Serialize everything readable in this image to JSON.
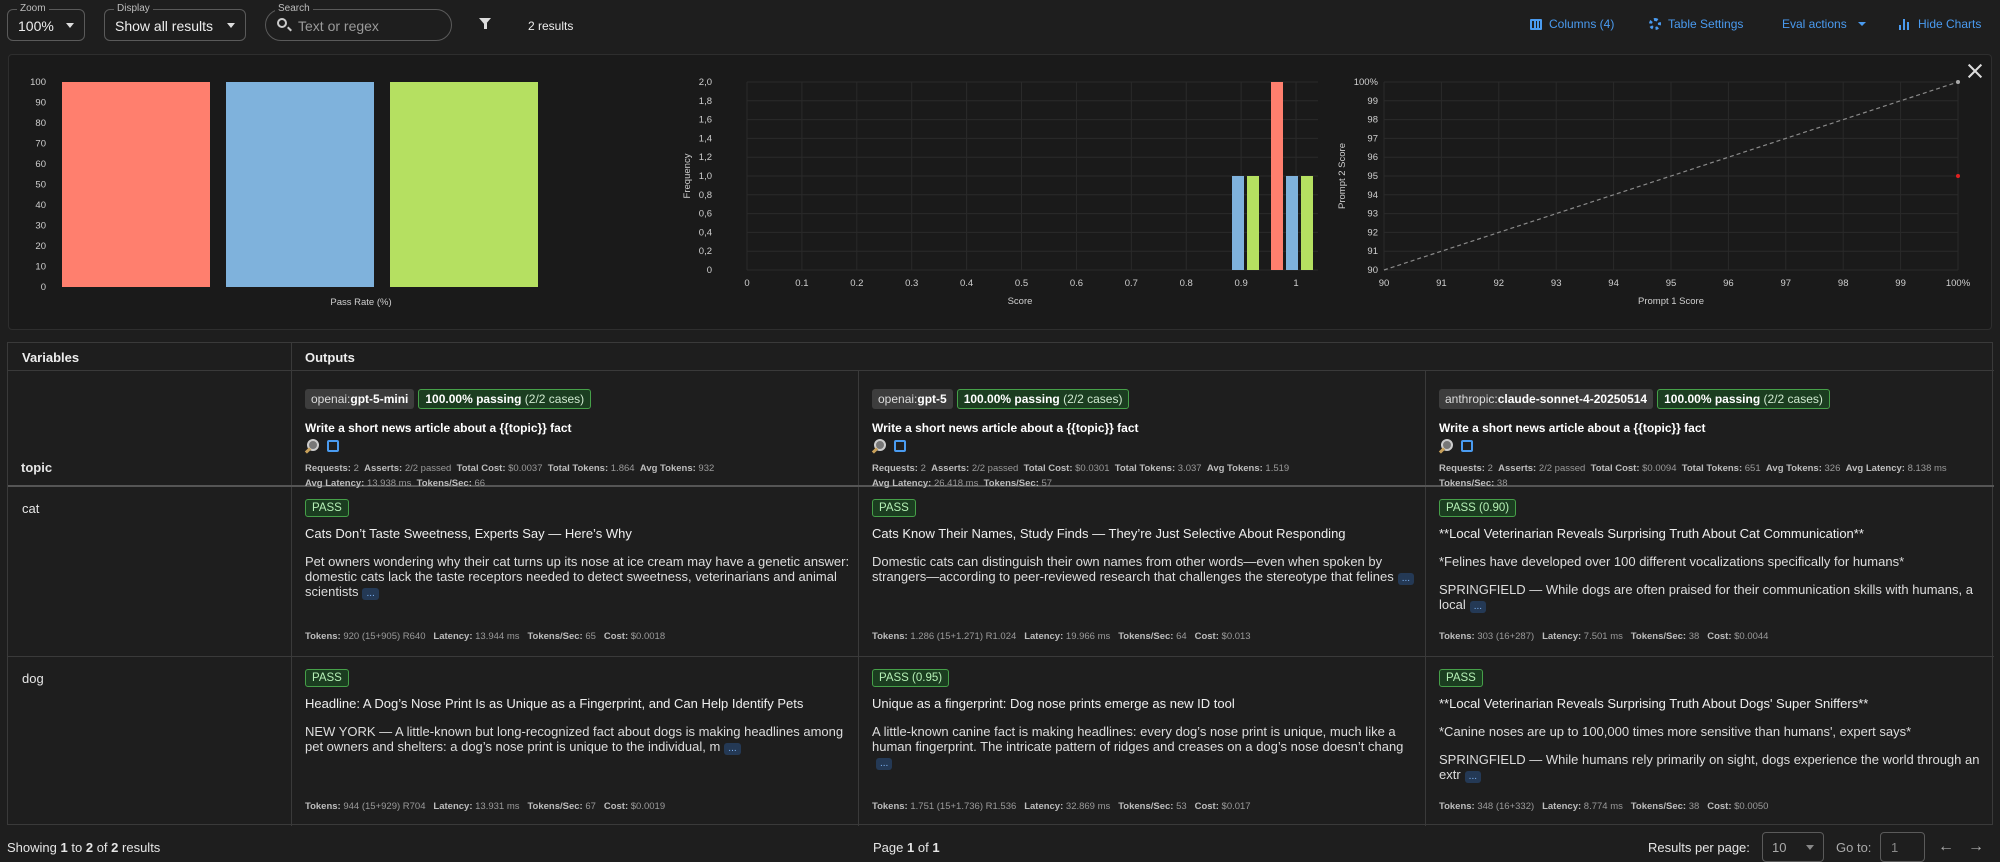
{
  "toolbar": {
    "zoom": {
      "legend": "Zoom",
      "value": "100%"
    },
    "display": {
      "legend": "Display",
      "value": "Show all results"
    },
    "search": {
      "legend": "Search",
      "placeholder": "Text or regex"
    },
    "result_count": "2 results",
    "columns_label": "Columns (4)",
    "table_settings_label": "Table Settings",
    "eval_actions_label": "Eval actions",
    "hide_charts_label": "Hide Charts",
    "accent_color": "#4a9bf0"
  },
  "chart_data": [
    {
      "type": "bar",
      "xlabel": "Pass Rate (%)",
      "categories": [
        "openai:gpt-5-mini",
        "openai:gpt-5",
        "anthropic:claude-sonnet-4-20250514"
      ],
      "values": [
        100,
        100,
        100
      ],
      "colors": [
        "#ff7f6e",
        "#7fb2dc",
        "#b5e061"
      ],
      "ylim": [
        0,
        100
      ],
      "yticks": [
        0,
        10,
        20,
        30,
        40,
        50,
        60,
        70,
        80,
        90,
        100
      ],
      "grid": false
    },
    {
      "type": "bar",
      "xlabel": "Score",
      "ylabel": "Frequency",
      "xticks": [
        "0",
        "0.1",
        "0.2",
        "0.3",
        "0.4",
        "0.5",
        "0.6",
        "0.7",
        "0.8",
        "0.9",
        "1"
      ],
      "yticks": [
        "0",
        "0,2",
        "0,4",
        "0,6",
        "0,8",
        "1,0",
        "1,2",
        "1,4",
        "1,6",
        "1,8",
        "2,0"
      ],
      "ylim": [
        0,
        2
      ],
      "xlim": [
        0,
        1.04
      ],
      "series": [
        {
          "color": "#ff7f6e",
          "points": [
            {
              "x": 0.95,
              "y": 0
            },
            {
              "x": 1.0,
              "y": 2
            }
          ]
        },
        {
          "color": "#7fb2dc",
          "points": [
            {
              "x": 0.95,
              "y": 1
            },
            {
              "x": 1.0,
              "y": 1
            }
          ]
        },
        {
          "color": "#b5e061",
          "points": [
            {
              "x": 0.95,
              "y": 1
            },
            {
              "x": 1.0,
              "y": 1
            }
          ]
        }
      ],
      "grid": true
    },
    {
      "type": "scatter",
      "xlabel": "Prompt 1 Score",
      "ylabel": "Prompt 2 Score",
      "xlim": [
        90,
        100
      ],
      "ylim": [
        90,
        100
      ],
      "xticks": [
        "90",
        "91",
        "92",
        "93",
        "94",
        "95",
        "96",
        "97",
        "98",
        "99",
        "100%"
      ],
      "yticks": [
        "90",
        "91",
        "92",
        "93",
        "94",
        "95",
        "96",
        "97",
        "98",
        "99",
        "100%"
      ],
      "points": [
        {
          "x": 100,
          "y": 100,
          "color": "#aaaaaa"
        },
        {
          "x": 100,
          "y": 95,
          "color": "#e02020"
        }
      ],
      "diagonal": true,
      "grid": true
    }
  ],
  "table": {
    "variables_header": "Variables",
    "outputs_header": "Outputs",
    "topic_label": "topic",
    "providers": [
      {
        "prefix": "openai:",
        "model": "gpt-5-mini",
        "passing_strong": "100.00% passing",
        "passing_cases": "(2/2 cases)",
        "prompt": "Write a short news article about a {{topic}} fact",
        "stats_line1": [
          [
            "Requests:",
            "2"
          ],
          [
            "Asserts:",
            "2/2 passed"
          ],
          [
            "Total Cost:",
            "$0.0037"
          ],
          [
            "Total Tokens:",
            "1.864"
          ],
          [
            "Avg Tokens:",
            "932"
          ]
        ],
        "stats_line2": [
          [
            "Avg Latency:",
            "13.938 ms"
          ],
          [
            "Tokens/Sec:",
            "66"
          ]
        ]
      },
      {
        "prefix": "openai:",
        "model": "gpt-5",
        "passing_strong": "100.00% passing",
        "passing_cases": "(2/2 cases)",
        "prompt": "Write a short news article about a {{topic}} fact",
        "stats_line1": [
          [
            "Requests:",
            "2"
          ],
          [
            "Asserts:",
            "2/2 passed"
          ],
          [
            "Total Cost:",
            "$0.0301"
          ],
          [
            "Total Tokens:",
            "3.037"
          ],
          [
            "Avg Tokens:",
            "1.519"
          ]
        ],
        "stats_line2": [
          [
            "Avg Latency:",
            "26.418 ms"
          ],
          [
            "Tokens/Sec:",
            "57"
          ]
        ]
      },
      {
        "prefix": "anthropic:",
        "model": "claude-sonnet-4-20250514",
        "passing_strong": "100.00% passing",
        "passing_cases": "(2/2 cases)",
        "prompt": "Write a short news article about a {{topic}} fact",
        "stats_line1": [
          [
            "Requests:",
            "2"
          ],
          [
            "Asserts:",
            "2/2 passed"
          ],
          [
            "Total Cost:",
            "$0.0094"
          ],
          [
            "Total Tokens:",
            "651"
          ],
          [
            "Avg Tokens:",
            "326"
          ],
          [
            "Avg Latency:",
            "8.138 ms"
          ]
        ],
        "stats_line2": [
          [
            "Tokens/Sec:",
            "38"
          ]
        ]
      }
    ],
    "rows": [
      {
        "topic": "cat",
        "cells": [
          {
            "badge": "PASS",
            "title": "Cats Don’t Taste Sweetness, Experts Say — Here’s Why",
            "body": "Pet owners wondering why their cat turns up its nose at ice cream may have a genetic answer: domestic cats lack the taste receptors needed to detect sweetness, veterinarians and animal scientists",
            "more": "...",
            "footer": [
              [
                "Tokens:",
                "920 (15+905) R640"
              ],
              [
                "Latency:",
                "13.944 ms"
              ],
              [
                "Tokens/Sec:",
                "65"
              ],
              [
                "Cost:",
                "$0.0018"
              ]
            ]
          },
          {
            "badge": "PASS",
            "title": "Cats Know Their Names, Study Finds — They’re Just Selective About Responding",
            "body": "Domestic cats can distinguish their own names from other words—even when spoken by strangers—according to peer-reviewed research that challenges the stereotype that felines",
            "more": "...",
            "footer": [
              [
                "Tokens:",
                "1.286 (15+1.271) R1.024"
              ],
              [
                "Latency:",
                "19.966 ms"
              ],
              [
                "Tokens/Sec:",
                "64"
              ],
              [
                "Cost:",
                "$0.013"
              ]
            ]
          },
          {
            "badge": "PASS (0.90)",
            "title": "**Local Veterinarian Reveals Surprising Truth About Cat Communication**",
            "body_lines": [
              "*Felines have developed over 100 different vocalizations specifically for humans*",
              "SPRINGFIELD — While dogs are often praised for their communication skills with humans, a local"
            ],
            "more": "...",
            "footer": [
              [
                "Tokens:",
                "303 (16+287)"
              ],
              [
                "Latency:",
                "7.501 ms"
              ],
              [
                "Tokens/Sec:",
                "38"
              ],
              [
                "Cost:",
                "$0.0044"
              ]
            ]
          }
        ]
      },
      {
        "topic": "dog",
        "cells": [
          {
            "badge": "PASS",
            "title": "Headline: A Dog’s Nose Print Is as Unique as a Fingerprint, and Can Help Identify Pets",
            "body": "NEW YORK — A little-known but long-recognized fact about dogs is making headlines among pet owners and shelters: a dog’s nose print is unique to the individual, m",
            "more": "...",
            "footer": [
              [
                "Tokens:",
                "944 (15+929) R704"
              ],
              [
                "Latency:",
                "13.931 ms"
              ],
              [
                "Tokens/Sec:",
                "67"
              ],
              [
                "Cost:",
                "$0.0019"
              ]
            ]
          },
          {
            "badge": "PASS (0.95)",
            "title": "Unique as a fingerprint: Dog nose prints emerge as new ID tool",
            "body": "A little-known canine fact is making headlines: every dog’s nose print is unique, much like a human fingerprint. The intricate pattern of ridges and creases on a dog’s nose doesn’t chang",
            "more": "...",
            "footer": [
              [
                "Tokens:",
                "1.751 (15+1.736) R1.536"
              ],
              [
                "Latency:",
                "32.869 ms"
              ],
              [
                "Tokens/Sec:",
                "53"
              ],
              [
                "Cost:",
                "$0.017"
              ]
            ]
          },
          {
            "badge": "PASS",
            "title": "**Local Veterinarian Reveals Surprising Truth About Dogs' Super Sniffers**",
            "body_lines": [
              "*Canine noses are up to 100,000 times more sensitive than humans', expert says*",
              "SPRINGFIELD — While humans rely primarily on sight, dogs experience the world through an extr"
            ],
            "more": "...",
            "footer": [
              [
                "Tokens:",
                "348 (16+332)"
              ],
              [
                "Latency:",
                "8.774 ms"
              ],
              [
                "Tokens/Sec:",
                "38"
              ],
              [
                "Cost:",
                "$0.0050"
              ]
            ]
          }
        ]
      }
    ]
  },
  "footer": {
    "showing_prefix": "Showing",
    "showing_from": "1",
    "showing_to_word": "to",
    "showing_to": "2",
    "showing_of_word": "of",
    "showing_total": "2",
    "showing_suffix": "results",
    "page_word": "Page",
    "page_current": "1",
    "page_of_word": "of",
    "page_total": "1",
    "results_per_page_label": "Results per page:",
    "results_per_page_value": "10",
    "goto_label": "Go to:",
    "goto_value": "1",
    "prev_icon": "arrow-left-icon",
    "next_icon": "arrow-right-icon"
  }
}
